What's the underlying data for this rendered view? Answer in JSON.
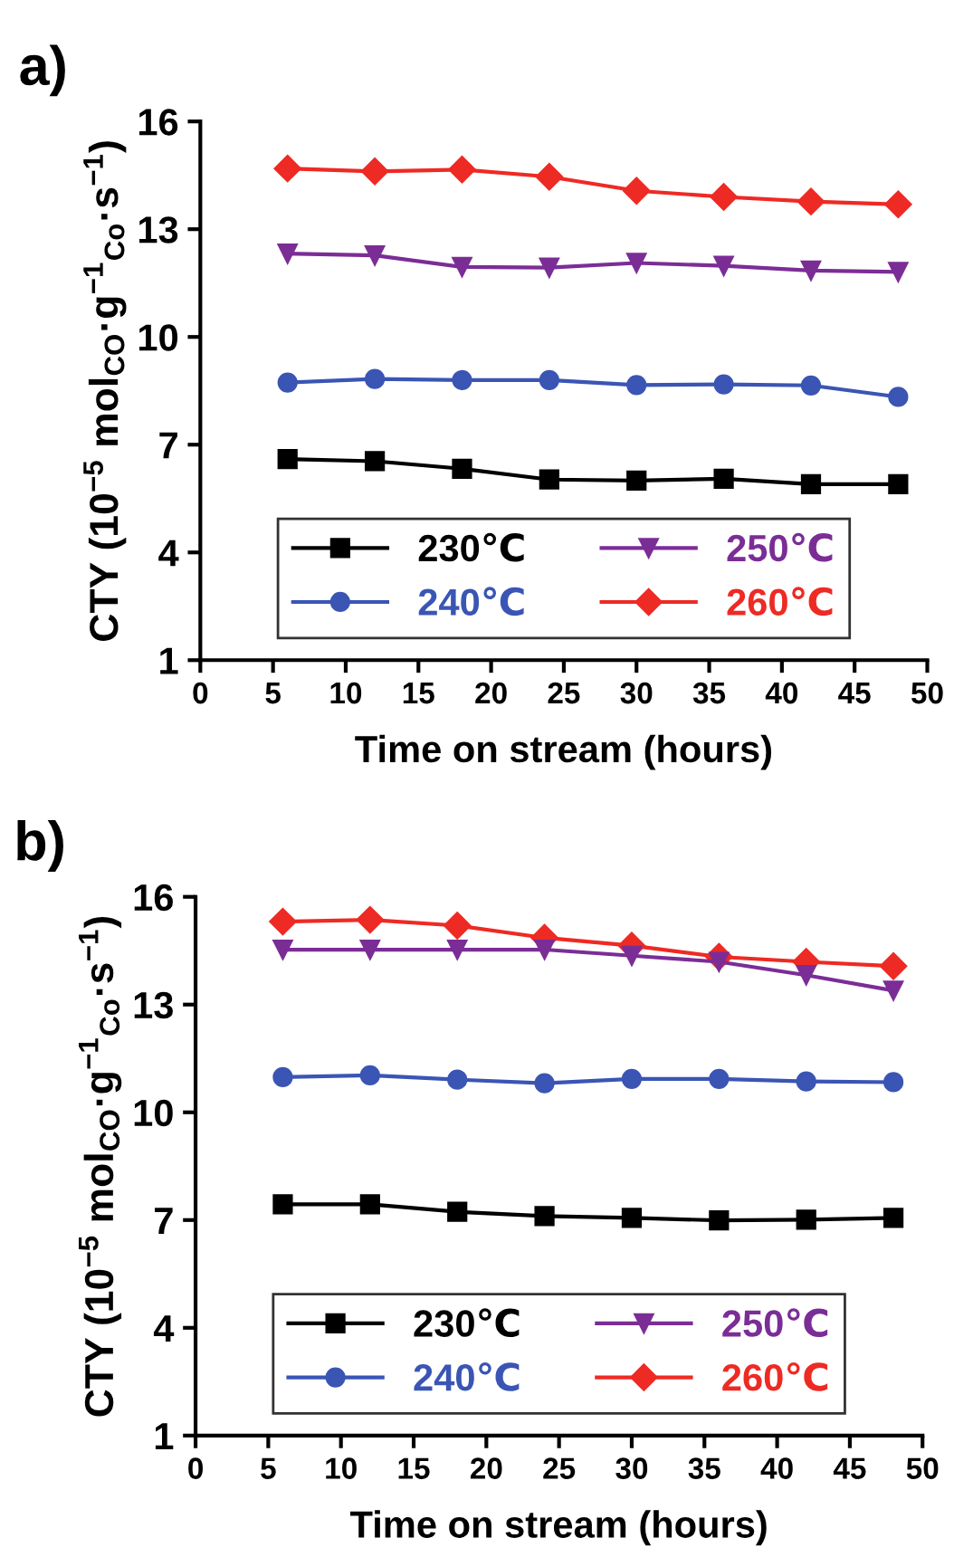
{
  "chart_data": [
    {
      "type": "line",
      "title": "a)",
      "xlabel": "Time on stream (hours)",
      "ylabel": "CTY (10$^{−5}$ mol$_{CO}$·g$^{−1}$$_{Co}$·s$^{−1}$)",
      "x": [
        6,
        12,
        18,
        24,
        30,
        36,
        42,
        48
      ],
      "xlim": [
        0,
        50
      ],
      "xticks": [
        0,
        5,
        10,
        15,
        20,
        25,
        30,
        35,
        40,
        45,
        50
      ],
      "ylim": [
        1,
        16
      ],
      "yticks": [
        1,
        4,
        7,
        10,
        13,
        16
      ],
      "legend": "bottom",
      "grid": false,
      "line_style": "solid",
      "series": [
        {
          "name": "230℃",
          "color": "#000000",
          "marker": "square",
          "values": [
            6.6,
            6.54,
            6.33,
            6.03,
            6.0,
            6.05,
            5.9,
            5.9
          ]
        },
        {
          "name": "240℃",
          "color": "#3a55b4",
          "marker": "circle",
          "values": [
            8.73,
            8.83,
            8.8,
            8.8,
            8.66,
            8.68,
            8.65,
            8.33
          ]
        },
        {
          "name": "250℃",
          "color": "#7b2d96",
          "marker": "triangle",
          "values": [
            12.32,
            12.27,
            11.95,
            11.93,
            12.06,
            11.98,
            11.85,
            11.81
          ]
        },
        {
          "name": "260℃",
          "color": "#ee2a24",
          "marker": "diamond",
          "values": [
            14.69,
            14.61,
            14.66,
            14.46,
            14.07,
            13.9,
            13.77,
            13.69
          ]
        }
      ]
    },
    {
      "type": "line",
      "title": "b)",
      "xlabel": "Time on stream (hours)",
      "ylabel": "CTY (10$^{−5}$ mol$_{CO}$·g$^{−1}$$_{Co}$·s$^{−1}$)",
      "x": [
        6,
        12,
        18,
        24,
        30,
        36,
        42,
        48
      ],
      "xlim": [
        0,
        50
      ],
      "xticks": [
        0,
        5,
        10,
        15,
        20,
        25,
        30,
        35,
        40,
        45,
        50
      ],
      "ylim": [
        1,
        16
      ],
      "yticks": [
        1,
        4,
        7,
        10,
        13,
        16
      ],
      "legend": "bottom",
      "grid": false,
      "line_style": "solid",
      "series": [
        {
          "name": "230℃",
          "color": "#000000",
          "marker": "square",
          "values": [
            7.44,
            7.44,
            7.23,
            7.11,
            7.06,
            6.99,
            7.01,
            7.06
          ]
        },
        {
          "name": "240℃",
          "color": "#3a55b4",
          "marker": "circle",
          "values": [
            10.98,
            11.03,
            10.91,
            10.81,
            10.93,
            10.93,
            10.86,
            10.84
          ]
        },
        {
          "name": "250℃",
          "color": "#7b2d96",
          "marker": "triangle",
          "values": [
            14.53,
            14.53,
            14.53,
            14.53,
            14.36,
            14.19,
            13.82,
            13.39
          ]
        },
        {
          "name": "260℃",
          "color": "#ee2a24",
          "marker": "diamond",
          "values": [
            15.31,
            15.36,
            15.2,
            14.86,
            14.64,
            14.33,
            14.19,
            14.07
          ]
        }
      ]
    }
  ]
}
